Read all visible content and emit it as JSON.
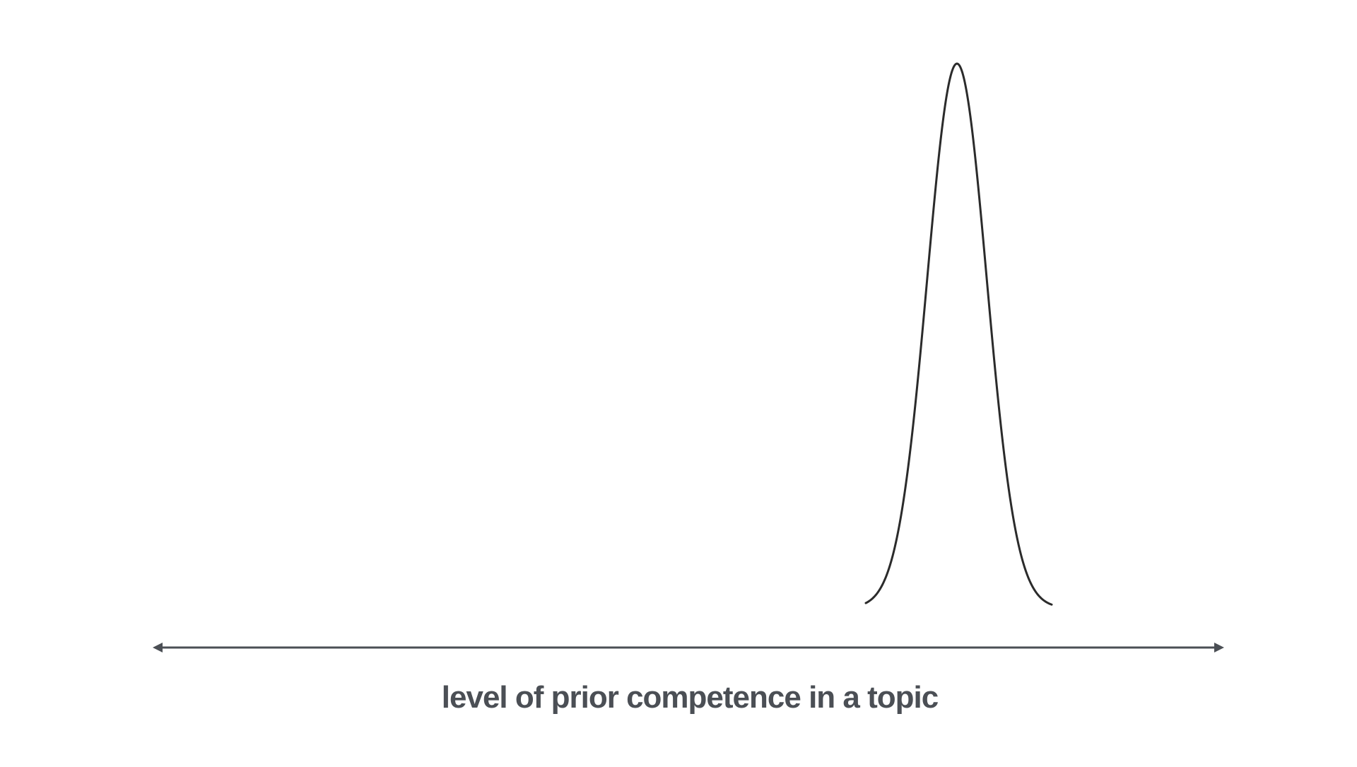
{
  "diagram": {
    "axis_label": "level of prior competence in a topic",
    "axis": {
      "direction": "bidirectional",
      "color": "#4b4f55"
    },
    "curve": {
      "shape": "narrow-bell",
      "description_peak_position_fraction": 0.75,
      "color": "#2b2b2b"
    }
  }
}
